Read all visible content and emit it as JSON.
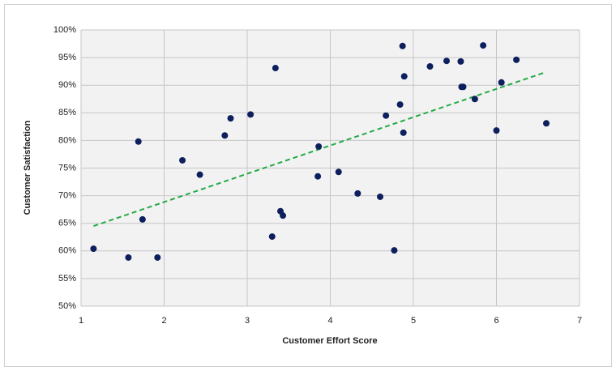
{
  "chart_data": {
    "type": "scatter",
    "x_label": "Customer Effort Score",
    "y_label": "Customer Satisfaction",
    "x": [
      1.15,
      1.57,
      1.69,
      1.74,
      1.92,
      2.22,
      2.43,
      2.73,
      2.8,
      3.04,
      3.3,
      3.34,
      3.4,
      3.43,
      3.85,
      3.86,
      4.1,
      4.33,
      4.6,
      4.67,
      4.77,
      4.84,
      4.87,
      4.88,
      4.89,
      5.2,
      5.4,
      5.57,
      5.58,
      5.6,
      5.74,
      5.84,
      6.0,
      6.06,
      6.24,
      6.6
    ],
    "values": [
      60.4,
      58.8,
      79.8,
      65.7,
      58.8,
      76.4,
      73.8,
      80.9,
      84.0,
      84.7,
      62.6,
      93.1,
      67.2,
      66.4,
      73.5,
      78.9,
      74.3,
      70.4,
      69.8,
      84.5,
      60.1,
      86.5,
      97.1,
      81.4,
      91.6,
      93.4,
      94.4,
      94.3,
      89.7,
      89.7,
      87.5,
      97.2,
      81.8,
      90.5,
      94.6,
      83.1
    ],
    "color": "#0d1f5c",
    "trendline": {
      "x": [
        1.15,
        6.6
      ],
      "values": [
        64.5,
        92.4
      ],
      "color": "#22aa44"
    },
    "xlim": [
      1,
      7
    ],
    "xticks": [
      1,
      2,
      3,
      4,
      5,
      6,
      7
    ],
    "ylim": [
      50,
      100
    ],
    "yticks": [
      {
        "value": 50,
        "label": "50%"
      },
      {
        "value": 55,
        "label": "55%"
      },
      {
        "value": 60,
        "label": "60%"
      },
      {
        "value": 65,
        "label": "65%"
      },
      {
        "value": 70,
        "label": "70%"
      },
      {
        "value": 75,
        "label": "75%"
      },
      {
        "value": 80,
        "label": "80%"
      },
      {
        "value": 85,
        "label": "85%"
      },
      {
        "value": 90,
        "label": "90%"
      },
      {
        "value": 95,
        "label": "95%"
      },
      {
        "value": 100,
        "label": "100%"
      }
    ],
    "grid": true
  }
}
